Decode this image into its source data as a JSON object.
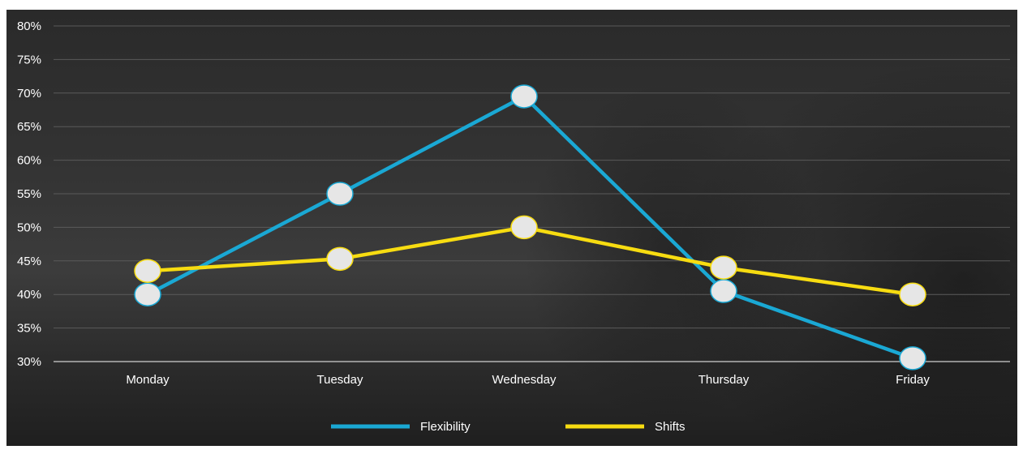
{
  "chart_data": {
    "type": "line",
    "categories": [
      "Monday",
      "Tuesday",
      "Wednesday",
      "Thursday",
      "Friday"
    ],
    "series": [
      {
        "name": "Flexibility",
        "color": "#1AA8D4",
        "values": [
          40,
          55,
          69.5,
          40.5,
          30.5
        ]
      },
      {
        "name": "Shifts",
        "color": "#F7DC11",
        "values": [
          43.5,
          45.3,
          50,
          44,
          40
        ]
      }
    ],
    "y_ticks": [
      "80%",
      "75%",
      "70%",
      "65%",
      "60%",
      "55%",
      "50%",
      "45%",
      "40%",
      "35%",
      "30%"
    ],
    "ylim": [
      30,
      80
    ],
    "grid": true,
    "legend_position": "bottom",
    "marker_fill": "#E6E6E6"
  }
}
